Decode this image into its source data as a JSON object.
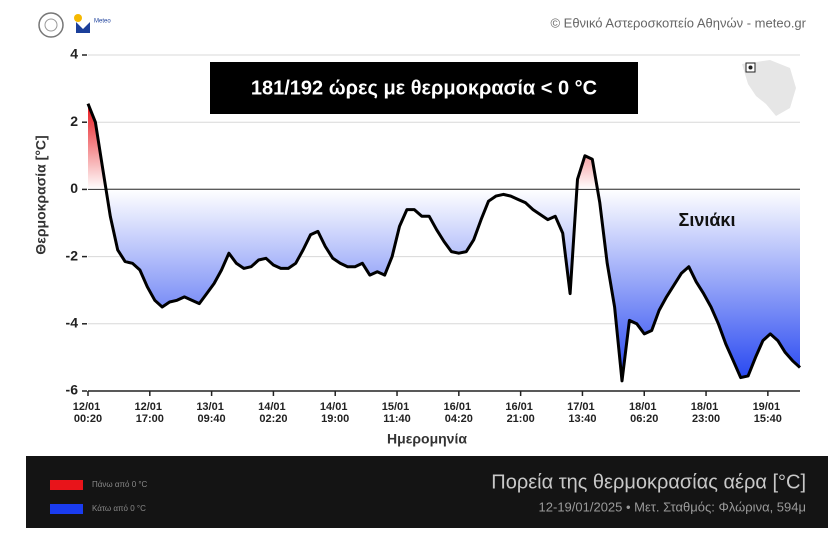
{
  "header": {
    "credit": "© Εθνικό Αστεροσκοπείο Αθηνών - meteo.gr",
    "logo": "Meteo"
  },
  "chart_data": {
    "type": "area-line",
    "annotation": "181/192 ώρες με θερμοκρασία < 0 °C",
    "station_label": "Σινιάκι",
    "ylabel": "Θερμοκρασία [°C]",
    "xlabel": "Ημερομηνία",
    "ylim": [
      -6,
      4
    ],
    "yticks": [
      -6,
      -4,
      -2,
      0,
      2,
      4
    ],
    "xlim": [
      "12/01 00:20",
      "20/01 00:20"
    ],
    "xticks": [
      "12/01 00:20",
      "12/01 17:00",
      "13/01 09:40",
      "14/01 02:20",
      "14/01 19:00",
      "15/01 11:40",
      "16/01 04:20",
      "16/01 21:00",
      "17/01 13:40",
      "18/01 06:20",
      "18/01 23:00",
      "19/01 15:40"
    ],
    "grid": true,
    "x": [
      "12/01 00:20",
      "12/01 02:20",
      "12/01 04:20",
      "12/01 06:20",
      "12/01 08:20",
      "12/01 10:20",
      "12/01 12:20",
      "12/01 14:20",
      "12/01 16:20",
      "12/01 18:20",
      "12/01 20:20",
      "12/01 22:20",
      "13/01 00:20",
      "13/01 02:20",
      "13/01 04:20",
      "13/01 06:20",
      "13/01 08:20",
      "13/01 10:20",
      "13/01 12:20",
      "13/01 14:20",
      "13/01 16:20",
      "13/01 18:20",
      "13/01 20:20",
      "13/01 22:20",
      "14/01 00:20",
      "14/01 02:20",
      "14/01 04:20",
      "14/01 06:20",
      "14/01 08:20",
      "14/01 10:20",
      "14/01 12:20",
      "14/01 14:20",
      "14/01 16:20",
      "14/01 18:20",
      "14/01 20:20",
      "14/01 22:20",
      "15/01 00:20",
      "15/01 02:20",
      "15/01 04:20",
      "15/01 06:20",
      "15/01 08:20",
      "15/01 10:20",
      "15/01 12:20",
      "15/01 14:20",
      "15/01 16:20",
      "15/01 18:20",
      "15/01 20:20",
      "15/01 22:20",
      "16/01 00:20",
      "16/01 02:20",
      "16/01 04:20",
      "16/01 06:20",
      "16/01 08:20",
      "16/01 10:20",
      "16/01 12:20",
      "16/01 14:20",
      "16/01 16:20",
      "16/01 18:20",
      "16/01 20:20",
      "16/01 22:20",
      "17/01 00:20",
      "17/01 02:20",
      "17/01 04:20",
      "17/01 06:20",
      "17/01 08:20",
      "17/01 10:20",
      "17/01 12:20",
      "17/01 14:20",
      "17/01 16:20",
      "17/01 18:20",
      "17/01 20:20",
      "17/01 22:20",
      "18/01 00:20",
      "18/01 02:20",
      "18/01 04:20",
      "18/01 06:20",
      "18/01 08:20",
      "18/01 10:20",
      "18/01 12:20",
      "18/01 14:20",
      "18/01 16:20",
      "18/01 18:20",
      "18/01 20:20",
      "18/01 22:20",
      "19/01 00:20",
      "19/01 02:20",
      "19/01 04:20",
      "19/01 06:20",
      "19/01 08:20",
      "19/01 10:20",
      "19/01 12:20",
      "19/01 14:20",
      "19/01 16:20",
      "19/01 18:20",
      "19/01 20:20",
      "19/01 22:20",
      "20/01 00:20"
    ],
    "series": [
      {
        "color": "#000000",
        "values": [
          2.55,
          2.0,
          0.6,
          -0.8,
          -1.8,
          -2.15,
          -2.2,
          -2.4,
          -2.9,
          -3.3,
          -3.5,
          -3.35,
          -3.3,
          -3.2,
          -3.3,
          -3.4,
          -3.1,
          -2.8,
          -2.4,
          -1.9,
          -2.2,
          -2.35,
          -2.3,
          -2.1,
          -2.05,
          -2.25,
          -2.35,
          -2.35,
          -2.2,
          -1.8,
          -1.35,
          -1.25,
          -1.7,
          -2.05,
          -2.2,
          -2.3,
          -2.3,
          -2.2,
          -2.55,
          -2.45,
          -2.55,
          -2.0,
          -1.1,
          -0.6,
          -0.6,
          -0.8,
          -0.8,
          -1.2,
          -1.55,
          -1.85,
          -1.9,
          -1.85,
          -1.5,
          -0.9,
          -0.35,
          -0.2,
          -0.15,
          -0.2,
          -0.3,
          -0.4,
          -0.6,
          -0.75,
          -0.9,
          -0.8,
          -1.3,
          -3.1,
          0.3,
          1.0,
          0.9,
          -0.4,
          -2.2,
          -3.5,
          -5.7,
          -3.9,
          -4.0,
          -4.3,
          -4.2,
          -3.6,
          -3.2,
          -2.85,
          -2.5,
          -2.3,
          -2.75,
          -3.1,
          -3.5,
          -4.0,
          -4.6,
          -5.1,
          -5.6,
          -5.55,
          -5.0,
          -4.5,
          -4.3,
          -4.5,
          -4.85,
          -5.1,
          -5.3
        ]
      }
    ],
    "above_color": "#e8141a",
    "below_color": "#1a3cf0",
    "legend": [
      {
        "label": "Πάνω από 0 °C",
        "color": "#e8141a"
      },
      {
        "label": "Κάτω από 0 °C",
        "color": "#1a3cf0"
      }
    ]
  },
  "footer": {
    "title": "Πορεία της θερμοκρασίας αέρα [°C]",
    "subtitle": "12-19/01/2025 • Μετ. Σταθμός: Φλώρινα, 594μ"
  }
}
